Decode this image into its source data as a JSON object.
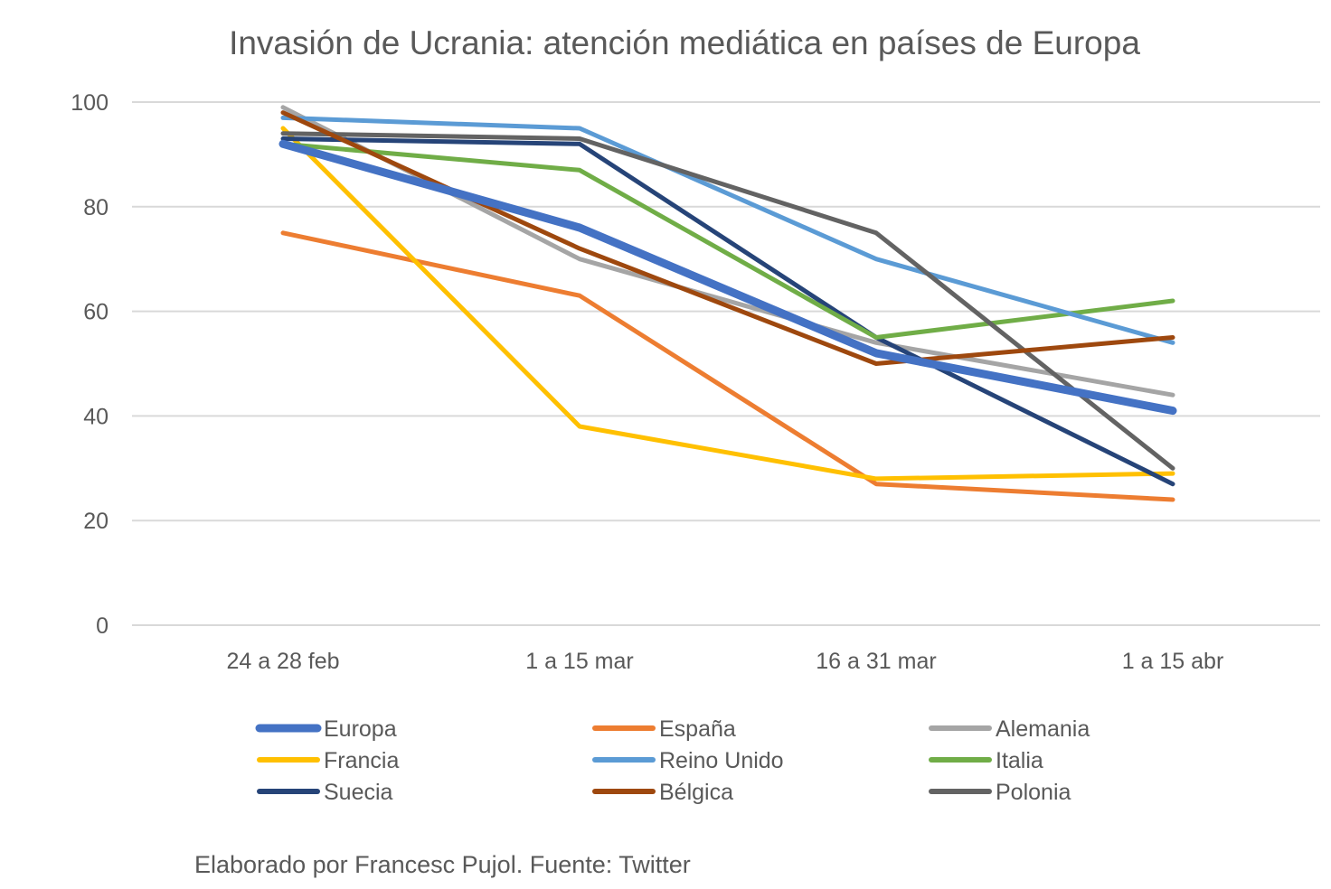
{
  "chart_data": {
    "type": "line",
    "title": "Invasión de Ucrania: atención mediática en países de Europa",
    "xlabel": "",
    "ylabel": "",
    "categories": [
      "24 a 28 feb",
      "1 a 15 mar",
      "16 a 31 mar",
      "1 a 15 abr"
    ],
    "ylim": [
      0,
      100
    ],
    "yticks": [
      0,
      20,
      40,
      60,
      80,
      100
    ],
    "grid": true,
    "legend_position": "bottom",
    "series": [
      {
        "name": "Europa",
        "color": "#4472C4",
        "width": 9,
        "values": [
          92,
          76,
          52,
          41
        ]
      },
      {
        "name": "España",
        "color": "#ED7D31",
        "width": 5,
        "values": [
          75,
          63,
          27,
          24
        ]
      },
      {
        "name": "Alemania",
        "color": "#A5A5A5",
        "width": 5,
        "values": [
          99,
          70,
          54,
          44
        ]
      },
      {
        "name": "Francia",
        "color": "#FFC000",
        "width": 5,
        "values": [
          95,
          38,
          28,
          29
        ]
      },
      {
        "name": "Reino Unido",
        "color": "#5B9BD5",
        "width": 5,
        "values": [
          97,
          95,
          70,
          54
        ]
      },
      {
        "name": "Italia",
        "color": "#70AD47",
        "width": 5,
        "values": [
          92,
          87,
          55,
          62
        ]
      },
      {
        "name": "Suecia",
        "color": "#264478",
        "width": 5,
        "values": [
          93,
          92,
          55,
          27
        ]
      },
      {
        "name": "Bélgica",
        "color": "#9E480E",
        "width": 5,
        "values": [
          98,
          72,
          50,
          55
        ]
      },
      {
        "name": "Polonia",
        "color": "#636363",
        "width": 5,
        "values": [
          94,
          93,
          75,
          30
        ]
      }
    ]
  },
  "source": "Elaborado por Francesc Pujol. Fuente: Twitter"
}
